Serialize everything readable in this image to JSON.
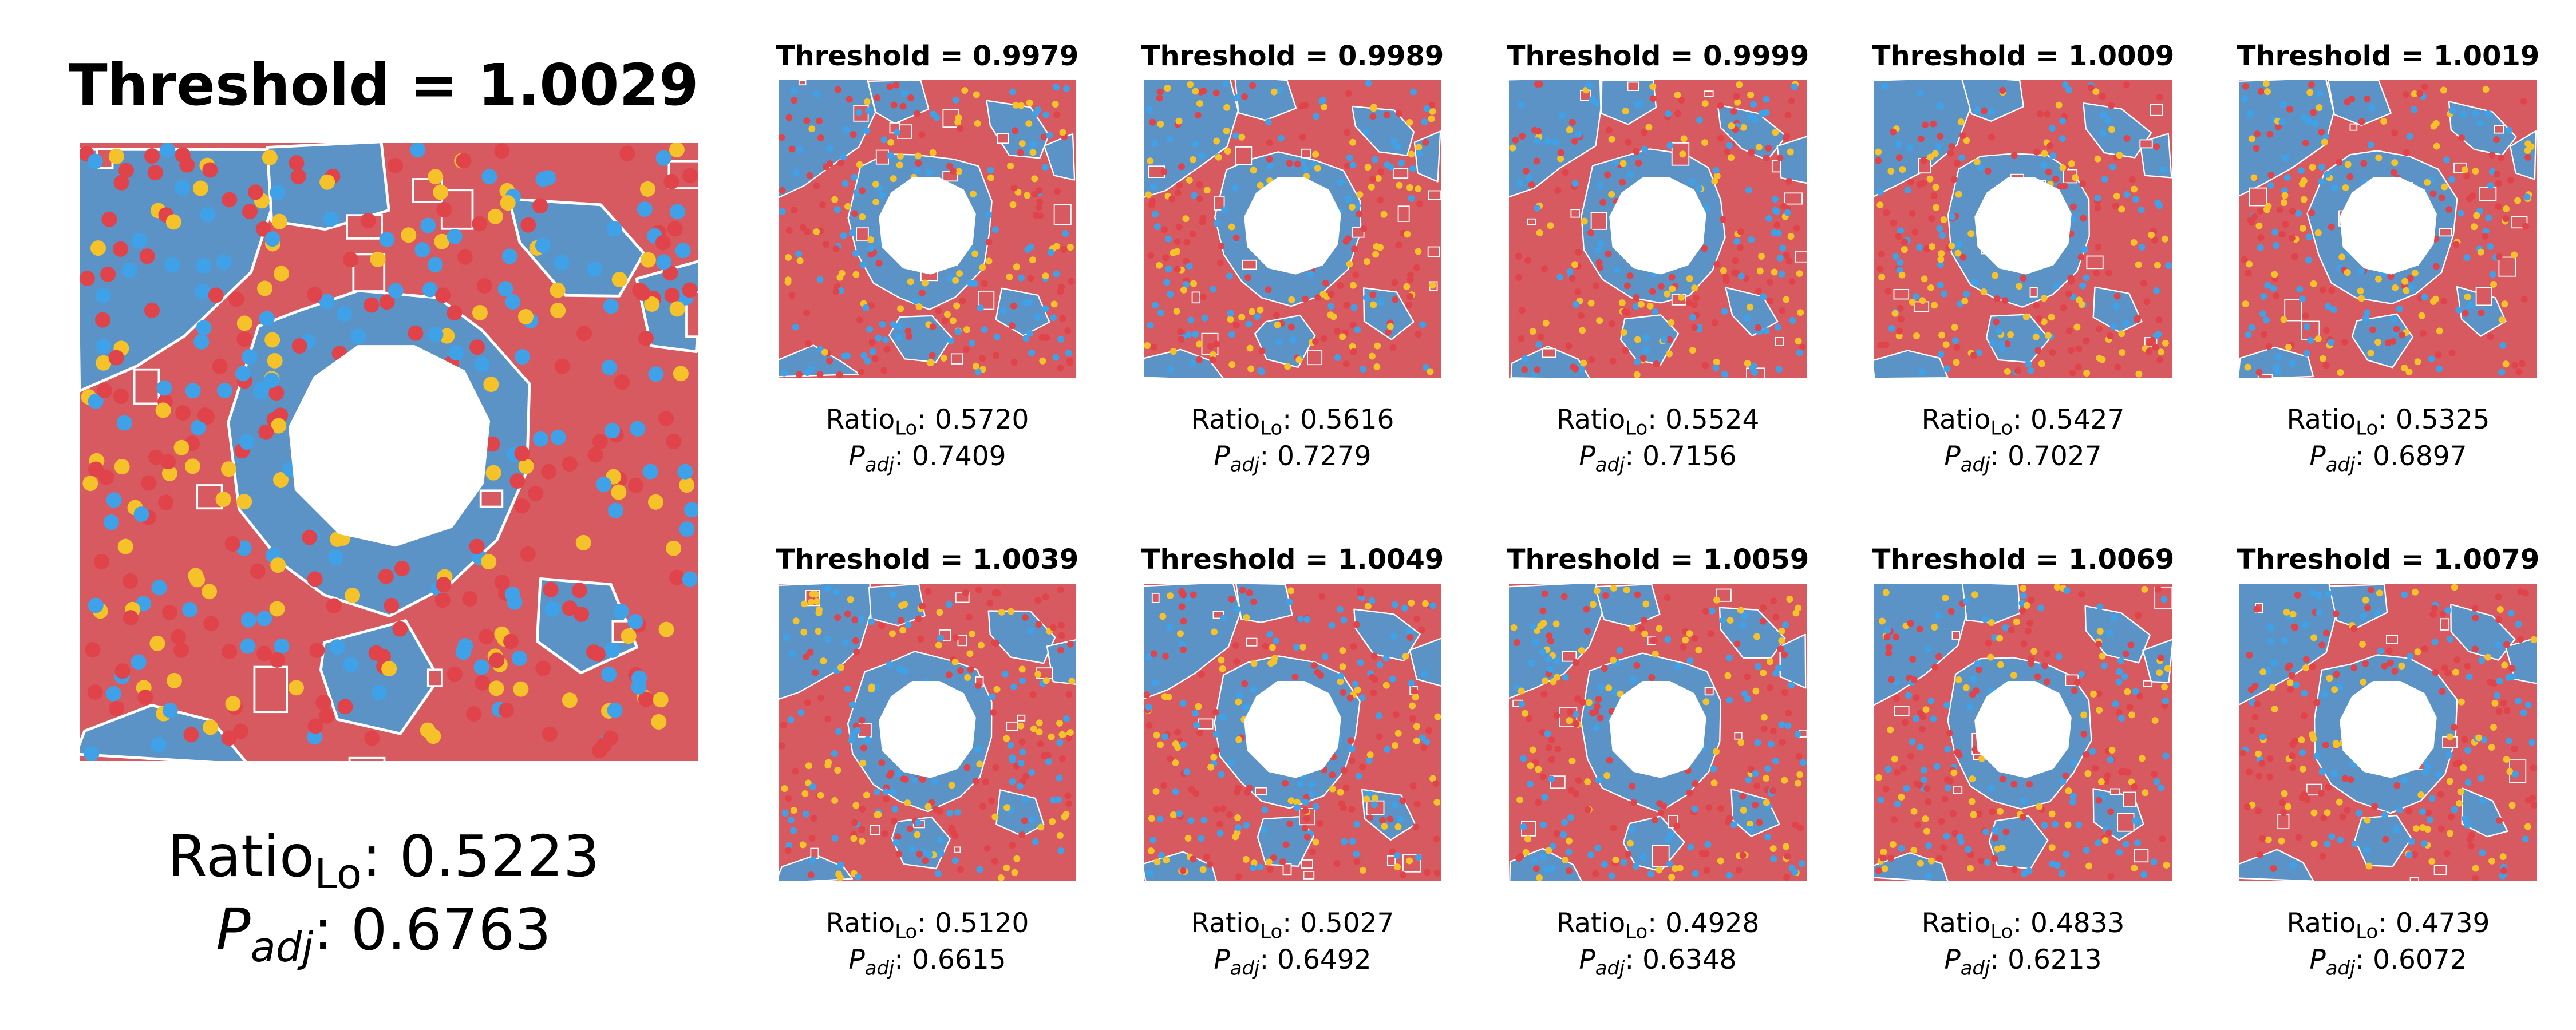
{
  "chart_data": [
    {
      "type": "spatial_map",
      "title": "Threshold = 1.0029",
      "ratio_label": "Ratio",
      "ratio_sub": "Lo",
      "ratio_value": "0.5223",
      "padj_label": "P",
      "padj_sub": "adj",
      "padj_value": "0.6763"
    },
    {
      "type": "spatial_map",
      "title": "Threshold = 0.9979",
      "ratio_label": "Ratio",
      "ratio_sub": "Lo",
      "ratio_value": "0.5720",
      "padj_label": "P",
      "padj_sub": "adj",
      "padj_value": "0.7409"
    },
    {
      "type": "spatial_map",
      "title": "Threshold = 0.9989",
      "ratio_label": "Ratio",
      "ratio_sub": "Lo",
      "ratio_value": "0.5616",
      "padj_label": "P",
      "padj_sub": "adj",
      "padj_value": "0.7279"
    },
    {
      "type": "spatial_map",
      "title": "Threshold = 0.9999",
      "ratio_label": "Ratio",
      "ratio_sub": "Lo",
      "ratio_value": "0.5524",
      "padj_label": "P",
      "padj_sub": "adj",
      "padj_value": "0.7156"
    },
    {
      "type": "spatial_map",
      "title": "Threshold = 1.0009",
      "ratio_label": "Ratio",
      "ratio_sub": "Lo",
      "ratio_value": "0.5427",
      "padj_label": "P",
      "padj_sub": "adj",
      "padj_value": "0.7027"
    },
    {
      "type": "spatial_map",
      "title": "Threshold = 1.0019",
      "ratio_label": "Ratio",
      "ratio_sub": "Lo",
      "ratio_value": "0.5325",
      "padj_label": "P",
      "padj_sub": "adj",
      "padj_value": "0.6897"
    },
    {
      "type": "spatial_map",
      "title": "Threshold = 1.0039",
      "ratio_label": "Ratio",
      "ratio_sub": "Lo",
      "ratio_value": "0.5120",
      "padj_label": "P",
      "padj_sub": "adj",
      "padj_value": "0.6615"
    },
    {
      "type": "spatial_map",
      "title": "Threshold = 1.0049",
      "ratio_label": "Ratio",
      "ratio_sub": "Lo",
      "ratio_value": "0.5027",
      "padj_label": "P",
      "padj_sub": "adj",
      "padj_value": "0.6492"
    },
    {
      "type": "spatial_map",
      "title": "Threshold = 1.0059",
      "ratio_label": "Ratio",
      "ratio_sub": "Lo",
      "ratio_value": "0.4928",
      "padj_label": "P",
      "padj_sub": "adj",
      "padj_value": "0.6348"
    },
    {
      "type": "spatial_map",
      "title": "Threshold = 1.0069",
      "ratio_label": "Ratio",
      "ratio_sub": "Lo",
      "ratio_value": "0.4833",
      "padj_label": "P",
      "padj_sub": "adj",
      "padj_value": "0.6213"
    },
    {
      "type": "spatial_map",
      "title": "Threshold = 1.0079",
      "ratio_label": "Ratio",
      "ratio_sub": "Lo",
      "ratio_value": "0.4739",
      "padj_label": "P",
      "padj_sub": "adj",
      "padj_value": "0.6072"
    }
  ],
  "colors": {
    "region_high": "#d65a5f",
    "region_low": "#5b93c7",
    "dot_red": "#e0444a",
    "dot_blue": "#3fa2e8",
    "dot_yellow": "#f6c22a",
    "boundary": "#ffffff"
  }
}
